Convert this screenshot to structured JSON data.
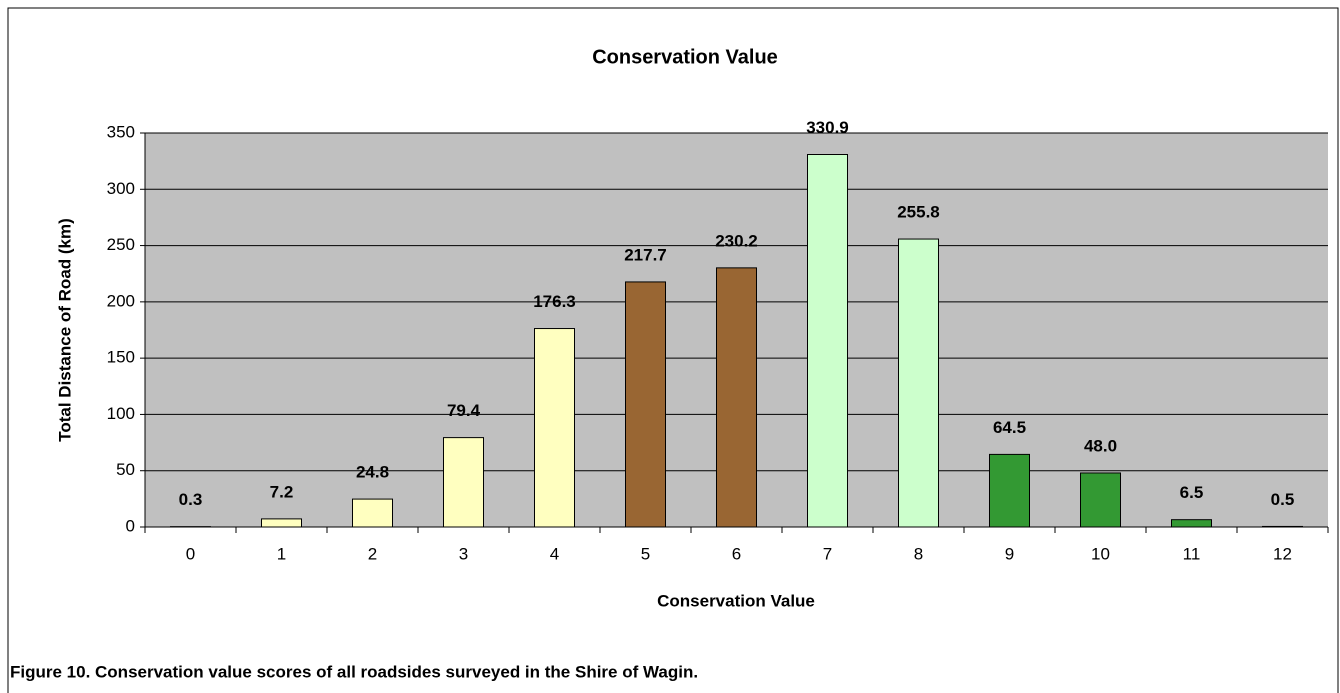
{
  "chart_data": {
    "type": "bar",
    "title": "Conservation Value",
    "xlabel": "Conservation Value",
    "ylabel": "Total Distance of Road (km)",
    "caption": "Figure 10. Conservation value scores of all roadsides surveyed in the Shire of Wagin.",
    "categories": [
      "0",
      "1",
      "2",
      "3",
      "4",
      "5",
      "6",
      "7",
      "8",
      "9",
      "10",
      "11",
      "12"
    ],
    "values": [
      0.3,
      7.2,
      24.8,
      79.4,
      176.3,
      217.7,
      230.2,
      330.9,
      255.8,
      64.5,
      48.0,
      6.5,
      0.5
    ],
    "value_labels": [
      "0.3",
      "7.2",
      "24.8",
      "79.4",
      "176.3",
      "217.7",
      "230.2",
      "330.9",
      "255.8",
      "64.5",
      "48.0",
      "6.5",
      "0.5"
    ],
    "colors": [
      "#ffffc0",
      "#ffffc0",
      "#ffffc0",
      "#ffffc0",
      "#ffffc0",
      "#996633",
      "#996633",
      "#ccffcc",
      "#ccffcc",
      "#339933",
      "#339933",
      "#339933",
      "#339933"
    ],
    "ylim": [
      0,
      350
    ],
    "yticks": [
      0,
      50,
      100,
      150,
      200,
      250,
      300,
      350
    ],
    "grid": true
  }
}
